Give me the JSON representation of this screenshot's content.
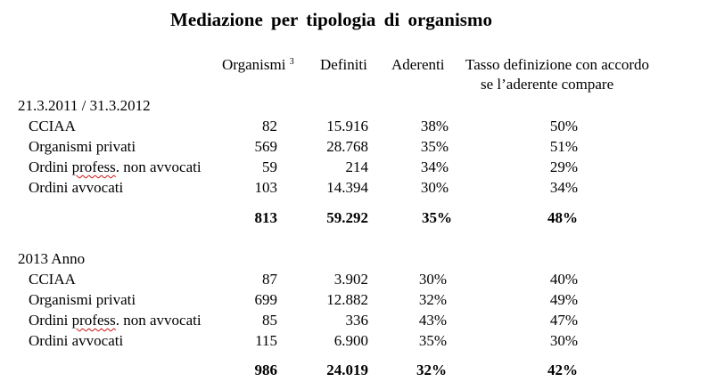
{
  "title": "Mediazione  per  tipologia  di  organismo",
  "headers": {
    "organismi": "Organismi",
    "organismi_note": "3",
    "definiti": "Definiti",
    "aderenti": "Aderenti",
    "tasso_line1": "Tasso definizione con accordo",
    "tasso_line2": "se l’aderente compare"
  },
  "sections": [
    {
      "label": "21.3.2011 / 31.3.2012",
      "rows": [
        {
          "name_a": "CCIAA",
          "name_b": "",
          "name_c": "",
          "organismi": "82",
          "definiti": "15.916",
          "aderenti": "38%",
          "tasso": "50%"
        },
        {
          "name_a": "Organismi privati",
          "name_b": "",
          "name_c": "",
          "organismi": "569",
          "definiti": "28.768",
          "aderenti": "35%",
          "tasso": "51%"
        },
        {
          "name_a": "Ordini ",
          "name_b": "profess",
          "name_c": ". non avvocati",
          "organismi": "59",
          "definiti": "214",
          "aderenti": "34%",
          "tasso": "29%"
        },
        {
          "name_a": "Ordini avvocati",
          "name_b": "",
          "name_c": "",
          "organismi": "103",
          "definiti": "14.394",
          "aderenti": "30%",
          "tasso": "34%"
        }
      ],
      "total": {
        "organismi": "813",
        "definiti": "59.292",
        "aderenti": "35%",
        "tasso": "48%"
      }
    },
    {
      "label": "2013  Anno",
      "rows": [
        {
          "name_a": "CCIAA",
          "name_b": "",
          "name_c": "",
          "organismi": "87",
          "definiti": "3.902",
          "aderenti": "30%",
          "tasso": "40%"
        },
        {
          "name_a": "Organismi privati",
          "name_b": "",
          "name_c": "",
          "organismi": "699",
          "definiti": "12.882",
          "aderenti": "32%",
          "tasso": "49%"
        },
        {
          "name_a": "Ordini ",
          "name_b": "profess",
          "name_c": ". non avvocati",
          "organismi": "85",
          "definiti": "336",
          "aderenti": "43%",
          "tasso": "47%"
        },
        {
          "name_a": "Ordini avvocati",
          "name_b": "",
          "name_c": "",
          "organismi": "115",
          "definiti": "6.900",
          "aderenti": "35%",
          "tasso": "30%"
        }
      ],
      "total": {
        "organismi": "986",
        "definiti": "24.019",
        "aderenti": "32%",
        "tasso": "42%"
      }
    }
  ]
}
